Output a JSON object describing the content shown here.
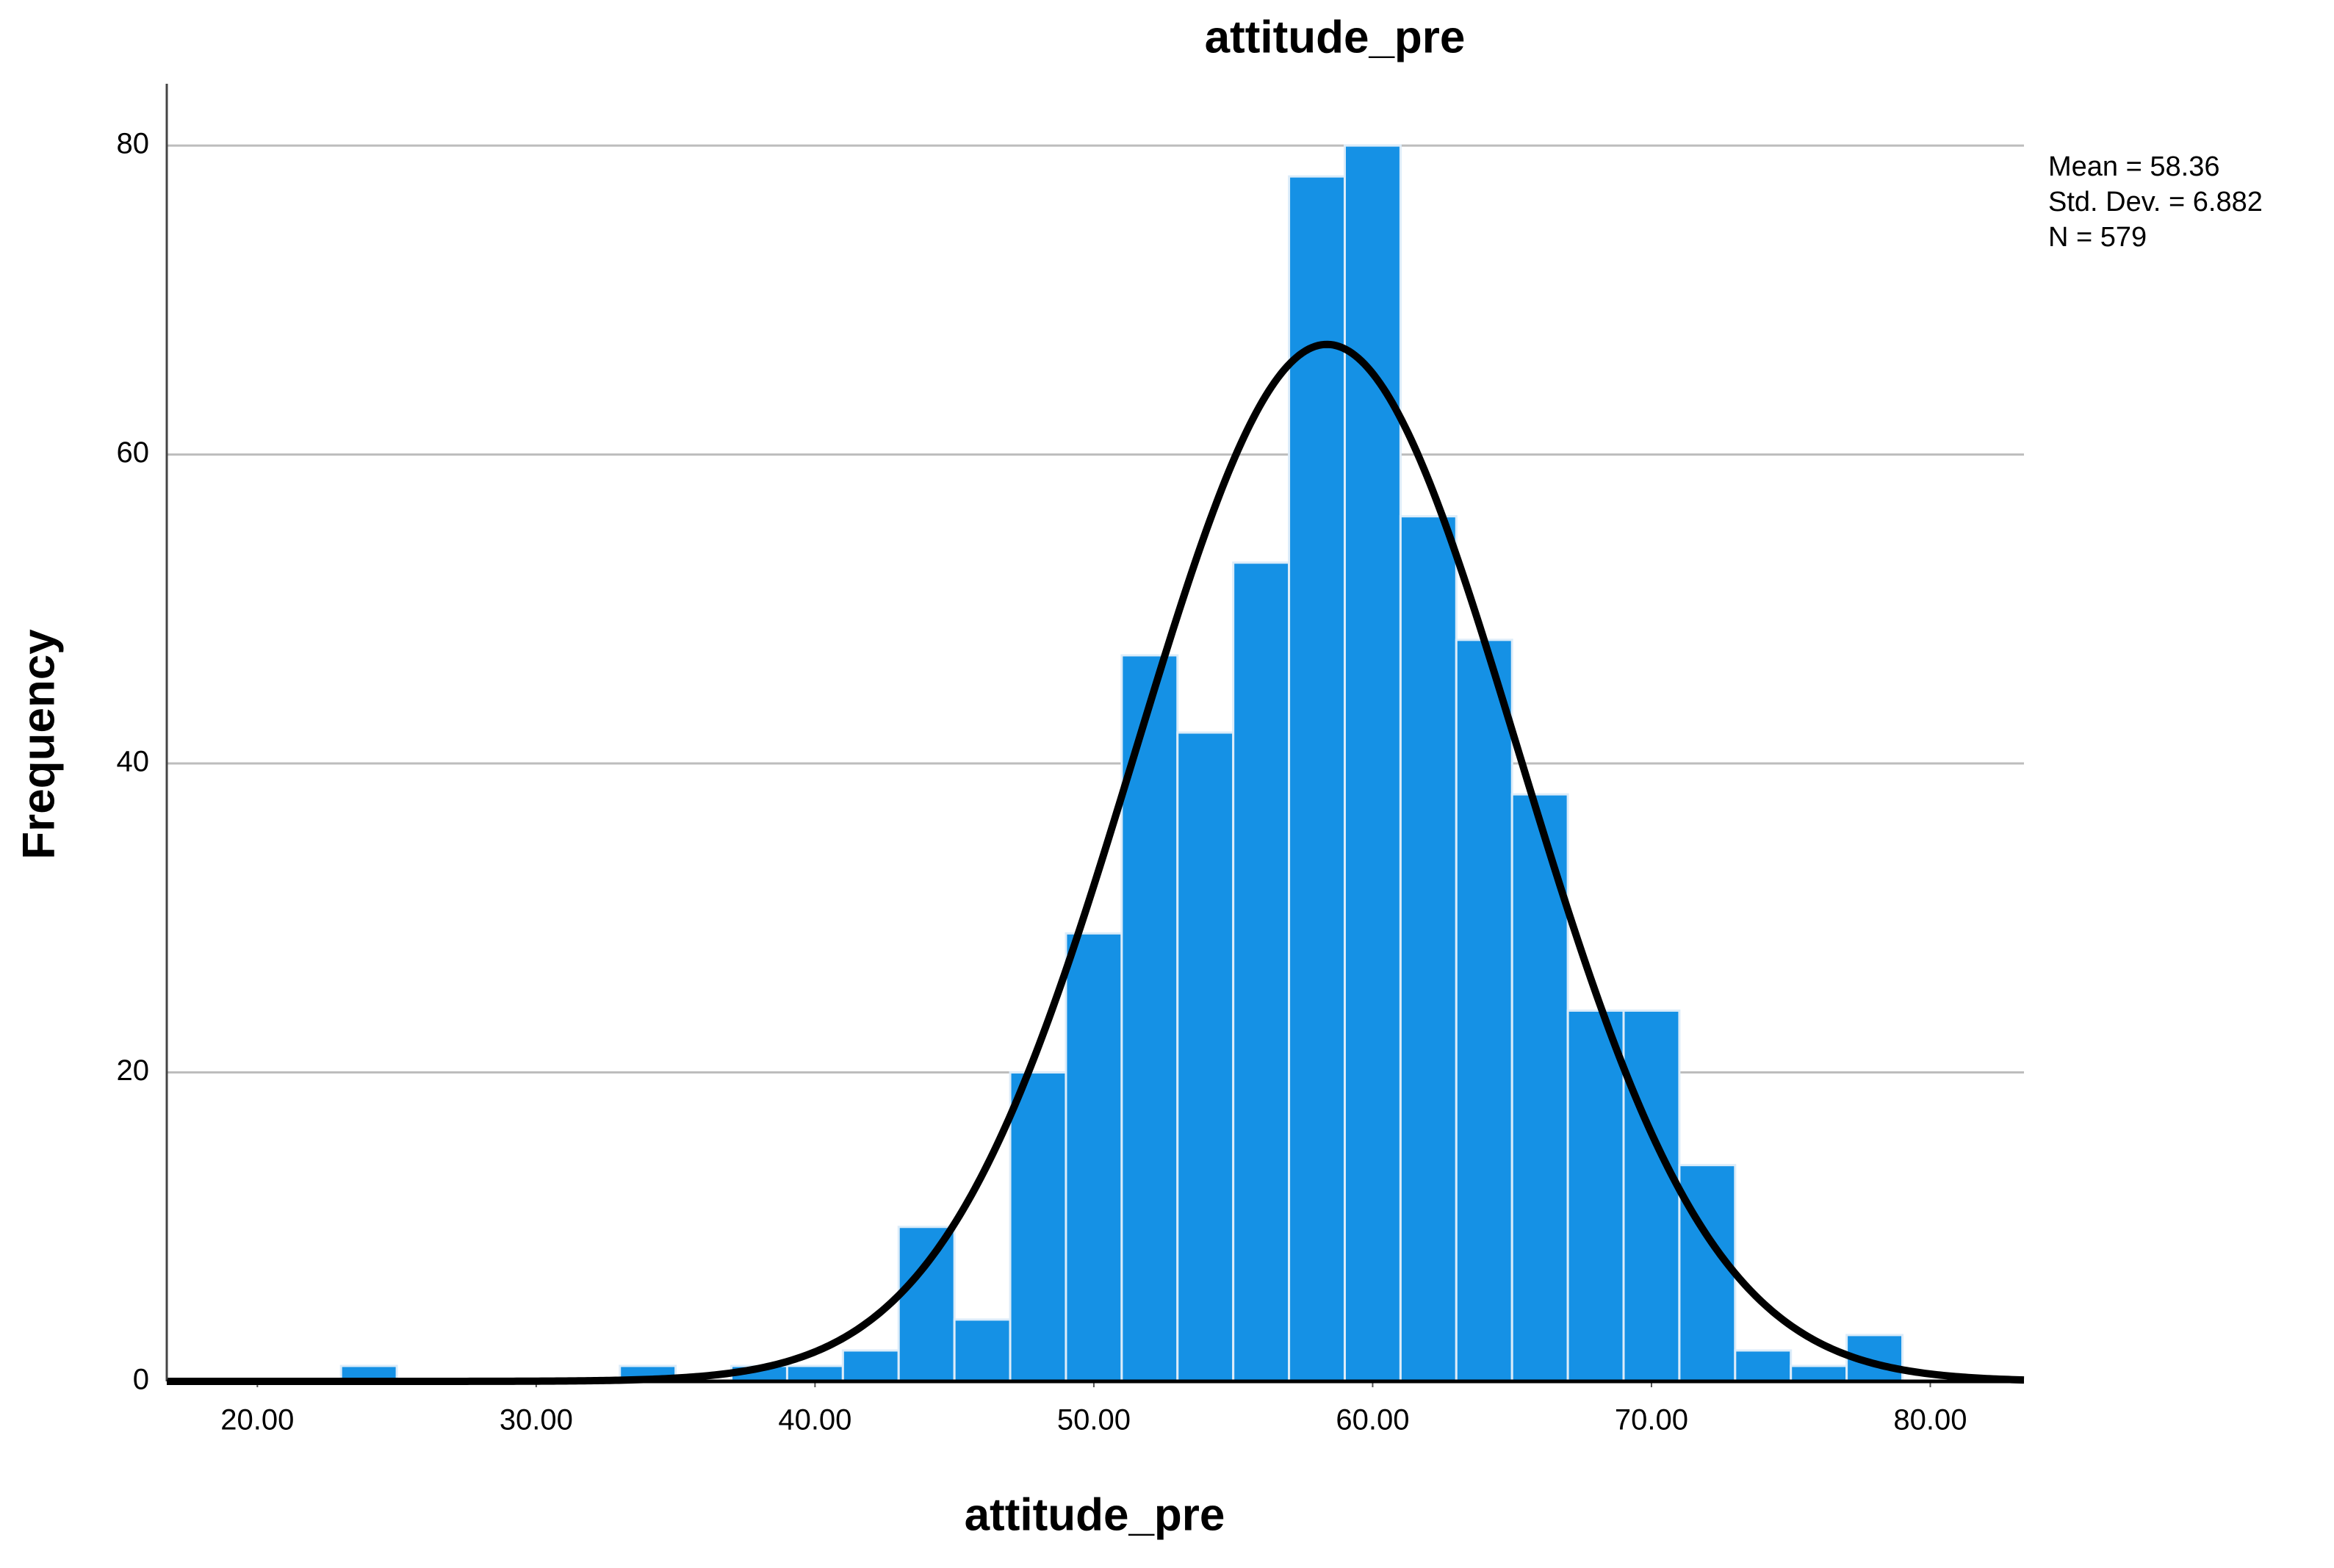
{
  "chart_data": {
    "type": "histogram",
    "title": "attitude_pre",
    "x_label": "attitude_pre",
    "y_label": "Frequency",
    "bins": [
      23,
      25,
      27,
      29,
      31,
      33,
      35,
      37,
      39,
      41,
      43,
      45,
      47,
      49,
      51,
      53,
      55,
      57,
      59,
      61,
      63,
      65,
      67,
      69,
      71,
      73,
      75,
      77,
      79
    ],
    "values": [
      1,
      0,
      0,
      0,
      0,
      1,
      0,
      1,
      1,
      2,
      10,
      4,
      20,
      29,
      47,
      42,
      53,
      78,
      80,
      56,
      48,
      38,
      24,
      24,
      14,
      2,
      1,
      3
    ],
    "color": "#1591e5",
    "edge_color": "#dcecf9",
    "xlim": [
      16.75,
      83.36
    ],
    "ylim": [
      0,
      84
    ],
    "xticks": [
      {
        "value": 20,
        "label": "20.00"
      },
      {
        "value": 30,
        "label": "30.00"
      },
      {
        "value": 40,
        "label": "40.00"
      },
      {
        "value": 50,
        "label": "50.00"
      },
      {
        "value": 60,
        "label": "60.00"
      },
      {
        "value": 70,
        "label": "70.00"
      },
      {
        "value": 80,
        "label": "80.00"
      }
    ],
    "yticks": [
      0,
      20,
      40,
      60,
      80
    ],
    "grid": true,
    "stats": [
      {
        "value": 58.36,
        "label": "Mean = 58.36"
      },
      {
        "value": 6.882,
        "label": "Std. Dev. = 6.882"
      },
      {
        "value": 579,
        "label": "N = 579"
      }
    ],
    "normal_curve": true
  }
}
